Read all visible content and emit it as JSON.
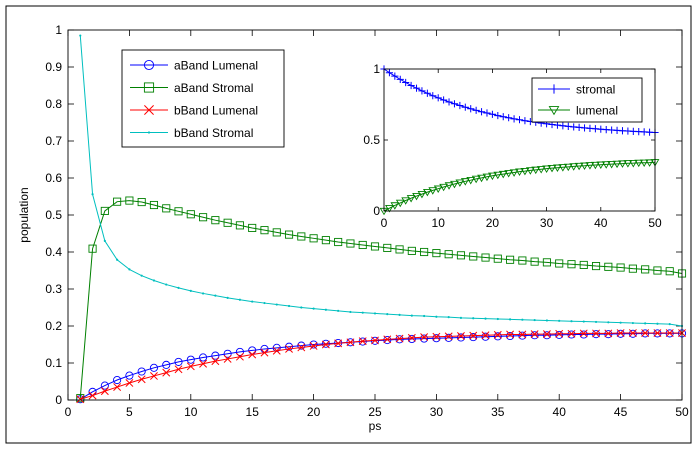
{
  "chart_data": [
    {
      "type": "line",
      "title": "",
      "xlabel": "ps",
      "ylabel": "population",
      "xlim": [
        0,
        50
      ],
      "ylim": [
        0,
        1
      ],
      "xticks": [
        0,
        5,
        10,
        15,
        20,
        25,
        30,
        35,
        40,
        45,
        50
      ],
      "yticks": [
        0,
        0.1,
        0.2,
        0.3,
        0.4,
        0.5,
        0.6,
        0.7,
        0.8,
        0.9,
        1
      ],
      "xtick_labels": [
        "0",
        "5",
        "10",
        "15",
        "20",
        "25",
        "30",
        "35",
        "40",
        "45",
        "50"
      ],
      "ytick_labels": [
        "0",
        "0.1",
        "0.2",
        "0.3",
        "0.4",
        "0.5",
        "0.6",
        "0.7",
        "0.8",
        "0.9",
        "1"
      ],
      "grid": false,
      "legend_position": "top-left",
      "series": [
        {
          "name": "aBand Lumenal",
          "color": "#0000ff",
          "marker": "circle",
          "x": [
            1,
            2,
            3,
            4,
            5,
            6,
            7,
            8,
            9,
            10,
            11,
            12,
            13,
            14,
            15,
            16,
            17,
            18,
            19,
            20,
            21,
            22,
            23,
            24,
            25,
            26,
            27,
            28,
            29,
            30,
            31,
            32,
            33,
            34,
            35,
            36,
            37,
            38,
            39,
            40,
            41,
            42,
            43,
            44,
            45,
            46,
            47,
            48,
            49,
            50
          ],
          "y": [
            0.002,
            0.022,
            0.039,
            0.054,
            0.066,
            0.077,
            0.087,
            0.095,
            0.103,
            0.109,
            0.115,
            0.12,
            0.125,
            0.13,
            0.134,
            0.138,
            0.141,
            0.144,
            0.147,
            0.15,
            0.152,
            0.154,
            0.156,
            0.158,
            0.16,
            0.162,
            0.164,
            0.165,
            0.166,
            0.167,
            0.168,
            0.169,
            0.17,
            0.171,
            0.172,
            0.173,
            0.174,
            0.175,
            0.175,
            0.176,
            0.177,
            0.177,
            0.178,
            0.178,
            0.179,
            0.179,
            0.18,
            0.18,
            0.18,
            0.18
          ]
        },
        {
          "name": "aBand Stromal",
          "color": "#008000",
          "marker": "square",
          "x": [
            1,
            2,
            3,
            4,
            5,
            6,
            7,
            8,
            9,
            10,
            11,
            12,
            13,
            14,
            15,
            16,
            17,
            18,
            19,
            20,
            21,
            22,
            23,
            24,
            25,
            26,
            27,
            28,
            29,
            30,
            31,
            32,
            33,
            34,
            35,
            36,
            37,
            38,
            39,
            40,
            41,
            42,
            43,
            44,
            45,
            46,
            47,
            48,
            49,
            50
          ],
          "y": [
            0.005,
            0.409,
            0.511,
            0.536,
            0.539,
            0.535,
            0.527,
            0.518,
            0.51,
            0.502,
            0.494,
            0.486,
            0.479,
            0.472,
            0.465,
            0.459,
            0.453,
            0.447,
            0.442,
            0.437,
            0.432,
            0.427,
            0.423,
            0.419,
            0.415,
            0.411,
            0.407,
            0.403,
            0.4,
            0.397,
            0.394,
            0.391,
            0.388,
            0.385,
            0.382,
            0.379,
            0.377,
            0.374,
            0.372,
            0.369,
            0.367,
            0.365,
            0.362,
            0.36,
            0.358,
            0.355,
            0.353,
            0.35,
            0.348,
            0.342
          ]
        },
        {
          "name": "bBand Lumenal",
          "color": "#ff0000",
          "marker": "x",
          "x": [
            1,
            2,
            3,
            4,
            5,
            6,
            7,
            8,
            9,
            10,
            11,
            12,
            13,
            14,
            15,
            16,
            17,
            18,
            19,
            20,
            21,
            22,
            23,
            24,
            25,
            26,
            27,
            28,
            29,
            30,
            31,
            32,
            33,
            34,
            35,
            36,
            37,
            38,
            39,
            40,
            41,
            42,
            43,
            44,
            45,
            46,
            47,
            48,
            49,
            50
          ],
          "y": [
            0.002,
            0.012,
            0.024,
            0.035,
            0.046,
            0.056,
            0.065,
            0.074,
            0.083,
            0.091,
            0.098,
            0.105,
            0.111,
            0.117,
            0.123,
            0.128,
            0.133,
            0.138,
            0.142,
            0.146,
            0.15,
            0.153,
            0.156,
            0.159,
            0.161,
            0.164,
            0.166,
            0.168,
            0.17,
            0.171,
            0.172,
            0.173,
            0.174,
            0.175,
            0.176,
            0.177,
            0.177,
            0.178,
            0.178,
            0.179,
            0.179,
            0.18,
            0.18,
            0.18,
            0.181,
            0.181,
            0.181,
            0.181,
            0.181,
            0.181
          ]
        },
        {
          "name": "bBand Stromal",
          "color": "#00bfbf",
          "marker": "dot",
          "x": [
            1,
            2,
            3,
            4,
            5,
            6,
            7,
            8,
            9,
            10,
            11,
            12,
            13,
            14,
            15,
            16,
            17,
            18,
            19,
            20,
            21,
            22,
            23,
            24,
            25,
            26,
            27,
            28,
            29,
            30,
            31,
            32,
            33,
            34,
            35,
            36,
            37,
            38,
            39,
            40,
            41,
            42,
            43,
            44,
            45,
            46,
            47,
            48,
            49,
            50
          ],
          "y": [
            0.985,
            0.556,
            0.43,
            0.379,
            0.353,
            0.336,
            0.323,
            0.312,
            0.303,
            0.295,
            0.288,
            0.282,
            0.276,
            0.271,
            0.266,
            0.262,
            0.258,
            0.254,
            0.25,
            0.247,
            0.244,
            0.241,
            0.238,
            0.236,
            0.234,
            0.232,
            0.23,
            0.228,
            0.227,
            0.225,
            0.224,
            0.222,
            0.221,
            0.22,
            0.219,
            0.218,
            0.217,
            0.216,
            0.215,
            0.214,
            0.213,
            0.212,
            0.211,
            0.21,
            0.209,
            0.208,
            0.207,
            0.206,
            0.205,
            0.2
          ]
        }
      ]
    },
    {
      "type": "line",
      "title": "",
      "xlabel": "",
      "ylabel": "",
      "xlim": [
        0,
        50
      ],
      "ylim": [
        0,
        1
      ],
      "xticks": [
        0,
        10,
        20,
        30,
        40,
        50
      ],
      "yticks": [
        0,
        0.5,
        1
      ],
      "xtick_labels": [
        "0",
        "10",
        "20",
        "30",
        "40",
        "50"
      ],
      "ytick_labels": [
        "0",
        "0.5",
        "1"
      ],
      "grid": false,
      "legend_position": "top-right",
      "series": [
        {
          "name": "stromal",
          "color": "#0000ff",
          "marker": "plus",
          "x": [
            0,
            1,
            2,
            3,
            4,
            5,
            6,
            7,
            8,
            9,
            10,
            11,
            12,
            13,
            14,
            15,
            16,
            17,
            18,
            19,
            20,
            21,
            22,
            23,
            24,
            25,
            26,
            27,
            28,
            29,
            30,
            31,
            32,
            33,
            34,
            35,
            36,
            37,
            38,
            39,
            40,
            41,
            42,
            43,
            44,
            45,
            46,
            47,
            48,
            49,
            50
          ],
          "y": [
            1.0,
            0.974,
            0.95,
            0.927,
            0.905,
            0.884,
            0.865,
            0.846,
            0.829,
            0.812,
            0.797,
            0.782,
            0.768,
            0.755,
            0.743,
            0.731,
            0.72,
            0.709,
            0.699,
            0.69,
            0.681,
            0.672,
            0.664,
            0.657,
            0.649,
            0.643,
            0.636,
            0.63,
            0.625,
            0.619,
            0.614,
            0.609,
            0.605,
            0.6,
            0.596,
            0.592,
            0.589,
            0.585,
            0.582,
            0.579,
            0.576,
            0.573,
            0.57,
            0.568,
            0.565,
            0.563,
            0.561,
            0.559,
            0.557,
            0.555,
            0.553
          ]
        },
        {
          "name": "lumenal",
          "color": "#008000",
          "marker": "triangle-down",
          "x": [
            0,
            1,
            2,
            3,
            4,
            5,
            6,
            7,
            8,
            9,
            10,
            11,
            12,
            13,
            14,
            15,
            16,
            17,
            18,
            19,
            20,
            21,
            22,
            23,
            24,
            25,
            26,
            27,
            28,
            29,
            30,
            31,
            32,
            33,
            34,
            35,
            36,
            37,
            38,
            39,
            40,
            41,
            42,
            43,
            44,
            45,
            46,
            47,
            48,
            49,
            50
          ],
          "y": [
            0.0,
            0.02,
            0.039,
            0.057,
            0.074,
            0.09,
            0.105,
            0.119,
            0.133,
            0.145,
            0.157,
            0.169,
            0.18,
            0.19,
            0.2,
            0.209,
            0.217,
            0.226,
            0.233,
            0.241,
            0.248,
            0.254,
            0.26,
            0.266,
            0.271,
            0.277,
            0.281,
            0.286,
            0.29,
            0.294,
            0.298,
            0.302,
            0.305,
            0.308,
            0.311,
            0.314,
            0.317,
            0.319,
            0.322,
            0.324,
            0.326,
            0.328,
            0.33,
            0.332,
            0.334,
            0.336,
            0.337,
            0.339,
            0.34,
            0.341,
            0.343
          ]
        }
      ]
    }
  ]
}
